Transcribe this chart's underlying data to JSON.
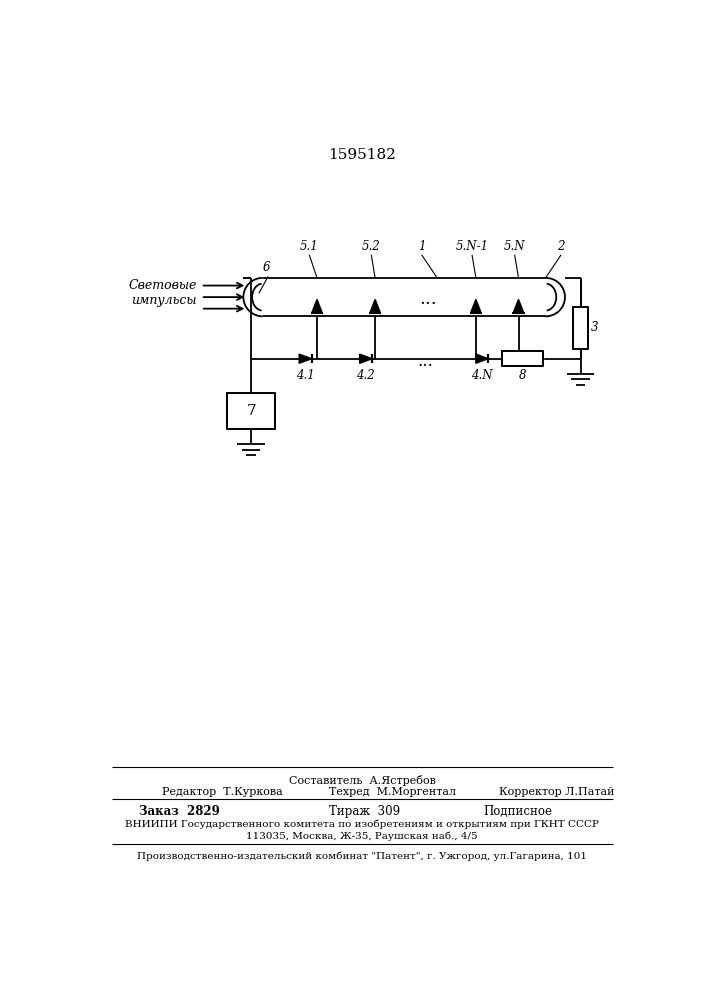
{
  "patent_number": "1595182",
  "bg": "#ffffff",
  "lc": "#000000",
  "light_label": "Световые\nимпульсы",
  "footer": {
    "sestavitel": "Составитель  А.Ястребов",
    "redaktor": "Редактор  Т.Куркова",
    "tehred": "Техред  М.Моргентал",
    "korrektor": "Корректор Л.Патай",
    "zakaz": "Заказ  2829",
    "tirazh": "Тираж  309",
    "podpisnoe": "Подписное",
    "vniiipi": "ВНИИПИ Государственного комитета по изобретениям и открытиям при ГКНТ СССР",
    "address": "113035, Москва, Ж-35, Раушская наб., 4/5",
    "kombinat": "Производственно-издательский комбинат \"Патент\", г. Ужгород, ул.Гагарина, 101"
  }
}
